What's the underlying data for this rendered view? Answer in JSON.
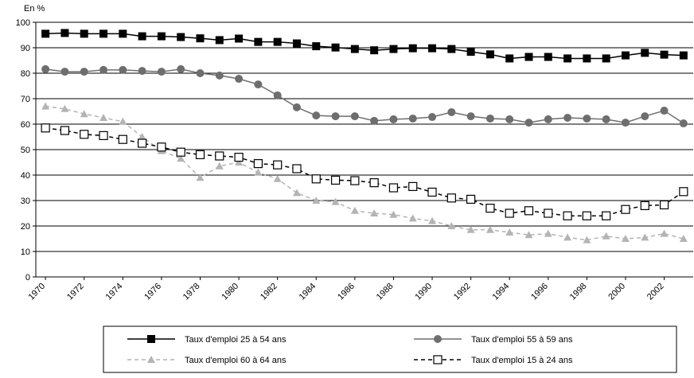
{
  "chart_data": {
    "type": "line",
    "ylabel": "En %",
    "x": [
      1970,
      1971,
      1972,
      1973,
      1974,
      1975,
      1976,
      1977,
      1978,
      1979,
      1980,
      1981,
      1982,
      1983,
      1984,
      1985,
      1986,
      1987,
      1988,
      1989,
      1990,
      1991,
      1992,
      1993,
      1994,
      1995,
      1996,
      1997,
      1998,
      1999,
      2000,
      2001,
      2002,
      2003
    ],
    "xlim": [
      1969.5,
      2003.5
    ],
    "xticks": [
      1970,
      1972,
      1974,
      1976,
      1978,
      1980,
      1982,
      1984,
      1986,
      1988,
      1990,
      1992,
      1994,
      1996,
      1998,
      2000,
      2002
    ],
    "ylim": [
      0,
      100
    ],
    "yticks": [
      0,
      10,
      20,
      30,
      40,
      50,
      60,
      70,
      80,
      90,
      100
    ],
    "grid": true,
    "series": [
      {
        "name": "Taux d'emploi 25 à 54 ans",
        "color": "#000000",
        "marker": "square",
        "dashed": false,
        "values": [
          95.5,
          95.8,
          95.5,
          95.5,
          95.5,
          94.5,
          94.5,
          94.2,
          93.7,
          93,
          93.6,
          92.3,
          92.3,
          91.7,
          90.6,
          90.1,
          89.5,
          89,
          89.5,
          89.8,
          89.8,
          89.5,
          88.4,
          87.4,
          85.8,
          86.4,
          86.4,
          85.8,
          85.8,
          85.8,
          87,
          88,
          87.3,
          87
        ]
      },
      {
        "name": "Taux d'emploi 55 à 59 ans",
        "color": "#6e6e6e",
        "marker": "circle",
        "dashed": false,
        "values": [
          81.6,
          80.6,
          80.6,
          81.3,
          81.3,
          80.9,
          80.6,
          81.6,
          80,
          79.1,
          77.8,
          75.6,
          71.3,
          66.6,
          63.4,
          63.1,
          63.1,
          61.3,
          61.9,
          62.2,
          62.8,
          64.7,
          63.1,
          62.2,
          61.9,
          60.6,
          61.9,
          62.5,
          62.2,
          61.9,
          60.6,
          63.1,
          65.3,
          60.3
        ]
      },
      {
        "name": "Taux d'emploi 60 à 64 ans",
        "color": "#b4b4b4",
        "marker": "triangle",
        "dashed": true,
        "values": [
          67,
          66,
          64,
          62.5,
          61,
          55,
          49.5,
          46.5,
          39,
          43.5,
          45,
          41,
          38.5,
          33,
          30,
          29.5,
          26,
          25,
          24.5,
          23,
          22,
          20,
          18.5,
          18.5,
          17.5,
          16.5,
          17,
          15.5,
          14.5,
          16,
          15,
          15.5,
          17,
          15
        ]
      },
      {
        "name": "Taux d'emploi 15 à 24 ans",
        "color": "#000000",
        "marker": "open-square",
        "dashed": true,
        "values": [
          58.5,
          57.5,
          56,
          55.5,
          54,
          52.5,
          51,
          49,
          48,
          47.5,
          47,
          44.5,
          44,
          42.5,
          38.5,
          38,
          37.8,
          37,
          35,
          35.5,
          33.3,
          31,
          30.5,
          27,
          25,
          26,
          25,
          24,
          24,
          24,
          26.5,
          28,
          28.3,
          33.5
        ]
      }
    ]
  }
}
